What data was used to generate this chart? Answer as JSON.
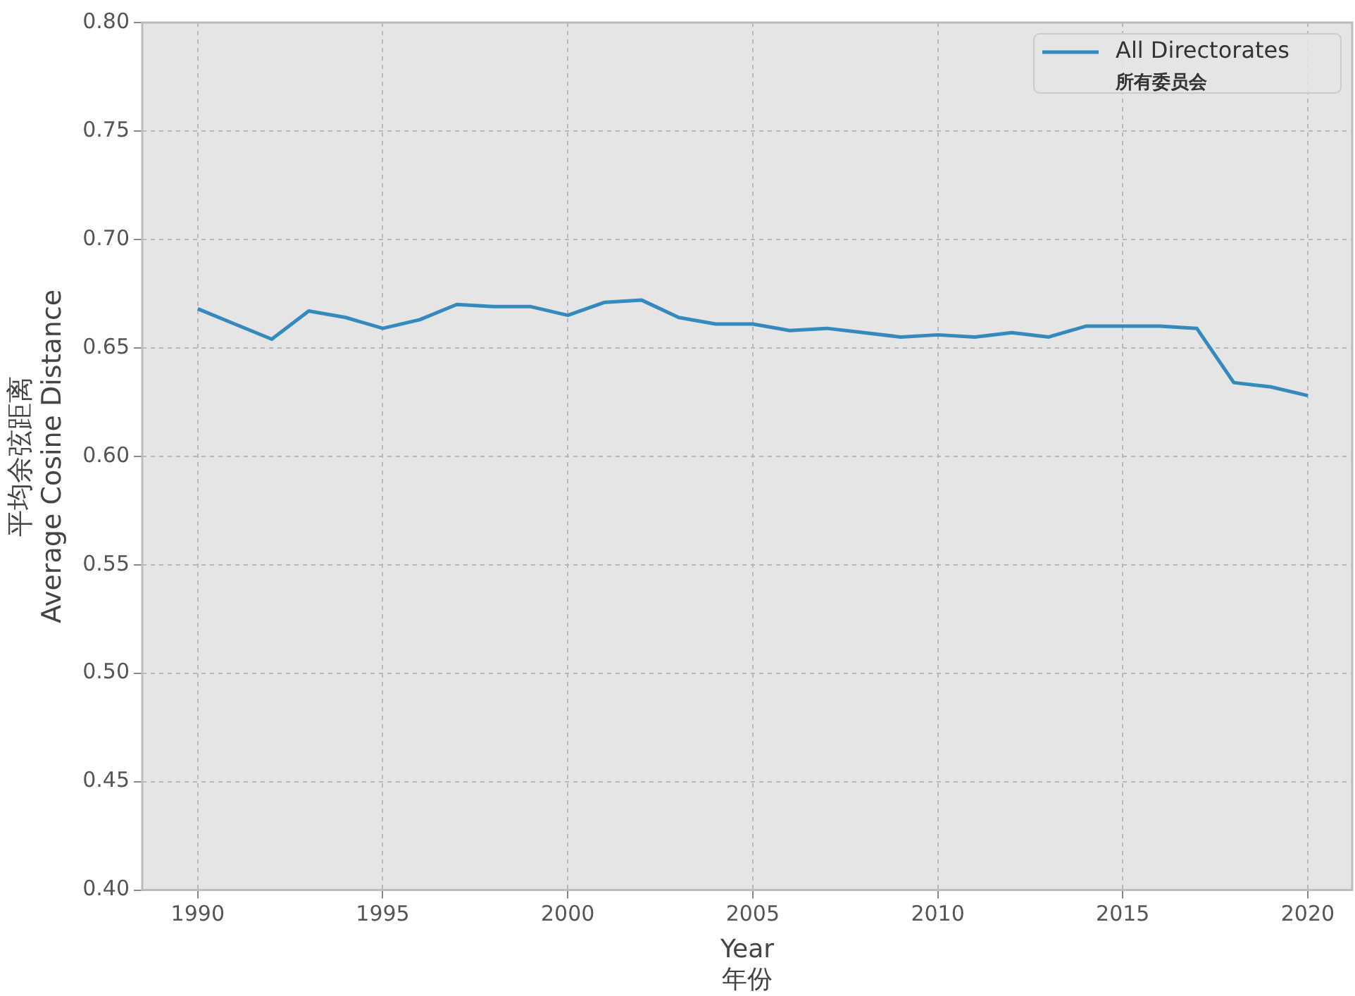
{
  "chart_data": {
    "type": "line",
    "xlabel": "Year\n年份",
    "ylabel": "平均余弦距离\nAverage Cosine Distance",
    "x": [
      1990,
      1991,
      1992,
      1993,
      1994,
      1995,
      1996,
      1997,
      1998,
      1999,
      2000,
      2001,
      2002,
      2003,
      2004,
      2005,
      2006,
      2007,
      2008,
      2009,
      2010,
      2011,
      2012,
      2013,
      2014,
      2015,
      2016,
      2017,
      2018,
      2019,
      2020
    ],
    "series": [
      {
        "name": "All Directorates\n所有委员会",
        "color": "#348abd",
        "values": [
          0.668,
          0.661,
          0.654,
          0.667,
          0.664,
          0.659,
          0.663,
          0.67,
          0.669,
          0.669,
          0.665,
          0.671,
          0.672,
          0.664,
          0.661,
          0.661,
          0.658,
          0.659,
          0.657,
          0.655,
          0.656,
          0.655,
          0.657,
          0.655,
          0.66,
          0.66,
          0.66,
          0.659,
          0.634,
          0.632,
          0.628
        ]
      }
    ],
    "xlim": [
      1988.5,
      2021.2
    ],
    "xticks": [
      1990,
      1995,
      2000,
      2005,
      2010,
      2015,
      2020
    ],
    "ylim": [
      0.4,
      0.8
    ],
    "yticks": [
      {
        "value": 0.4,
        "label": "0.40"
      },
      0.45,
      {
        "value": 0.5,
        "label": "0.50"
      },
      0.55,
      {
        "value": 0.6,
        "label": "0.60"
      },
      0.65,
      {
        "value": 0.7,
        "label": "0.70"
      },
      0.75,
      {
        "value": 0.8,
        "label": "0.80"
      }
    ],
    "grid": true,
    "legend": "top right",
    "marker": "none",
    "line_style": "solid"
  }
}
